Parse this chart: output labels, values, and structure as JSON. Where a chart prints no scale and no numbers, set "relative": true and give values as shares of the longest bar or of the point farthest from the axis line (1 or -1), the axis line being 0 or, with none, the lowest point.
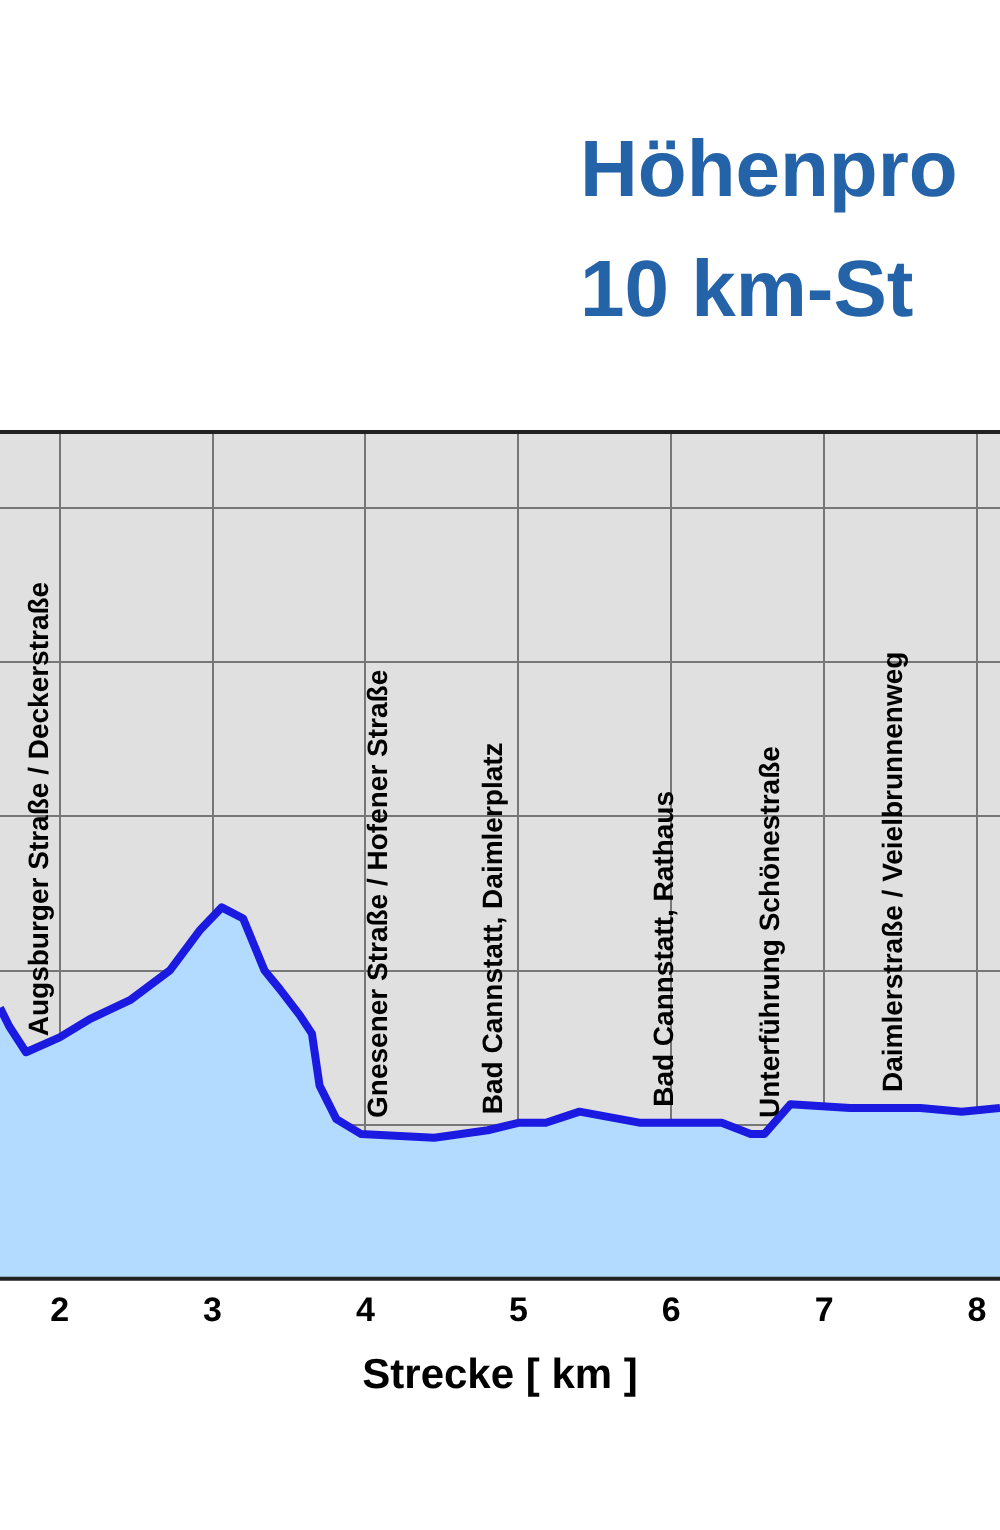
{
  "chart_data": {
    "type": "area",
    "title": "Höhenpro",
    "subtitle": "10 km-St",
    "xlabel": "Strecke [ km ]",
    "relative": true,
    "x": [
      1.61,
      1.67,
      1.78,
      2.0,
      2.2,
      2.46,
      2.72,
      2.92,
      3.06,
      3.2,
      3.34,
      3.44,
      3.57,
      3.65,
      3.7,
      3.81,
      3.97,
      4.45,
      4.8,
      5.0,
      5.18,
      5.4,
      5.8,
      6.33,
      6.52,
      6.61,
      6.78,
      7.17,
      7.63,
      7.9,
      8.15
    ],
    "series": [
      {
        "color": "#1a1ae0",
        "values": [
          0.73,
          0.68,
          0.61,
          0.65,
          0.7,
          0.75,
          0.83,
          0.94,
          1,
          0.97,
          0.83,
          0.78,
          0.71,
          0.66,
          0.52,
          0.43,
          0.39,
          0.38,
          0.4,
          0.42,
          0.42,
          0.45,
          0.42,
          0.42,
          0.39,
          0.39,
          0.47,
          0.46,
          0.46,
          0.45,
          0.46
        ]
      }
    ],
    "xlim": [
      1.61,
      8.15
    ],
    "xticks": [
      2,
      3,
      4,
      5,
      6,
      7,
      8
    ],
    "grid": true,
    "legend": false,
    "marker": "none",
    "annotations": [
      {
        "text": "Augsburger Straße / Deckerstraße",
        "x": 1.78,
        "y": 0.61
      },
      {
        "text": "Gnesener Straße / Hofener Straße",
        "x": 4.0,
        "y": 0.39
      },
      {
        "text": "Bad Cannstatt, Daimlerplatz",
        "x": 4.75,
        "y": 0.4
      },
      {
        "text": "Bad Cannstatt, Rathaus",
        "x": 5.87,
        "y": 0.42
      },
      {
        "text": "Unterführung Schönestraße",
        "x": 6.56,
        "y": 0.39
      },
      {
        "text": "Daimlerstraße / Veielbrunnenweg",
        "x": 7.37,
        "y": 0.46
      }
    ]
  }
}
